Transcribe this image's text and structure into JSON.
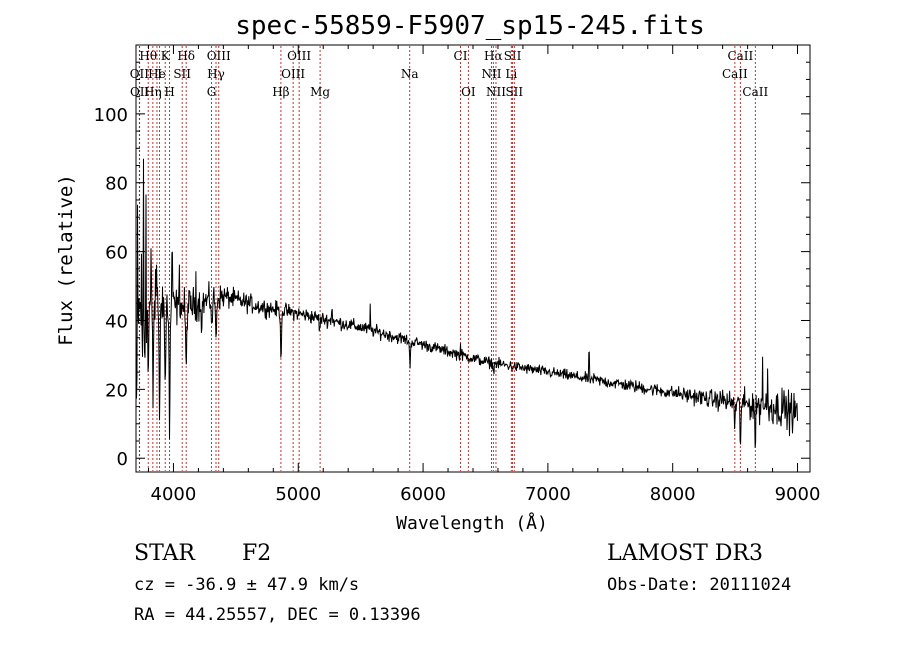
{
  "chart_data": {
    "type": "line",
    "title": "spec-55859-F5907_sp15-245.fits",
    "xlabel": "Wavelength (Å)",
    "ylabel": "Flux (relative)",
    "xlim": [
      3700,
      9100
    ],
    "ylim": [
      -4,
      120
    ],
    "xticks": [
      4000,
      5000,
      6000,
      7000,
      8000,
      9000
    ],
    "yticks": [
      0,
      20,
      40,
      60,
      80,
      100
    ],
    "grid": false,
    "continuum": {
      "x": [
        3700,
        3800,
        3900,
        4000,
        4100,
        4200,
        4300,
        4400,
        4500,
        4700,
        5000,
        5500,
        6000,
        6500,
        7000,
        7500,
        8000,
        8500,
        8800,
        9000
      ],
      "y": [
        42,
        44,
        45,
        44,
        44,
        45,
        46,
        47,
        46,
        44,
        42,
        38,
        33,
        28,
        25,
        22,
        19,
        16,
        15,
        13
      ]
    },
    "absorption_features": [
      {
        "wavelength": 3705,
        "depth": 38,
        "width": 4
      },
      {
        "wavelength": 3750,
        "depth": 18,
        "width": 4
      },
      {
        "wavelength": 3770,
        "depth": 14,
        "width": 4
      },
      {
        "wavelength": 3798,
        "depth": 20,
        "width": 5
      },
      {
        "wavelength": 3836,
        "depth": 26,
        "width": 5
      },
      {
        "wavelength": 3889,
        "depth": 30,
        "width": 6
      },
      {
        "wavelength": 3934,
        "depth": 25,
        "width": 6
      },
      {
        "wavelength": 3969,
        "depth": 38,
        "width": 6
      },
      {
        "wavelength": 4102,
        "depth": 20,
        "width": 6
      },
      {
        "wavelength": 4227,
        "depth": 8,
        "width": 4
      },
      {
        "wavelength": 4308,
        "depth": 9,
        "width": 5
      },
      {
        "wavelength": 4341,
        "depth": 14,
        "width": 5
      },
      {
        "wavelength": 4861,
        "depth": 13,
        "width": 6
      },
      {
        "wavelength": 5172,
        "depth": 4,
        "width": 5
      },
      {
        "wavelength": 5895,
        "depth": 8,
        "width": 5
      },
      {
        "wavelength": 6563,
        "depth": 3,
        "width": 5
      },
      {
        "wavelength": 8498,
        "depth": 7,
        "width": 5
      },
      {
        "wavelength": 8542,
        "depth": 12,
        "width": 5
      },
      {
        "wavelength": 8662,
        "depth": 12,
        "width": 5
      }
    ],
    "spikes": [
      {
        "wavelength": 3712,
        "height": 28
      },
      {
        "wavelength": 3745,
        "height": 22
      },
      {
        "wavelength": 3760,
        "height": 42
      },
      {
        "wavelength": 3780,
        "height": 38
      },
      {
        "wavelength": 3820,
        "height": 14
      },
      {
        "wavelength": 3863,
        "height": 18
      },
      {
        "wavelength": 3912,
        "height": 12
      },
      {
        "wavelength": 3990,
        "height": 16
      },
      {
        "wavelength": 4049,
        "height": 18
      },
      {
        "wavelength": 4180,
        "height": 8
      },
      {
        "wavelength": 5270,
        "height": 4
      },
      {
        "wavelength": 5577,
        "height": 8
      },
      {
        "wavelength": 6300,
        "height": 4
      },
      {
        "wavelength": 7330,
        "height": 6
      },
      {
        "wavelength": 8400,
        "height": 4
      },
      {
        "wavelength": 8719,
        "height": 18
      },
      {
        "wavelength": 8760,
        "height": 10
      },
      {
        "wavelength": 8875,
        "height": 8
      }
    ],
    "noise_profile": {
      "x": [
        3700,
        4000,
        4500,
        5000,
        6000,
        7000,
        8000,
        8400,
        8700,
        9000
      ],
      "amplitude": [
        10,
        4.5,
        2.2,
        1.6,
        1.3,
        1.2,
        1.5,
        2.2,
        3.8,
        4.5
      ]
    },
    "line_markers": [
      {
        "label": "Hθ",
        "wavelength": 3798,
        "row": 0
      },
      {
        "label": "K",
        "wavelength": 3934,
        "row": 0
      },
      {
        "label": "Hδ",
        "wavelength": 4102,
        "row": 0
      },
      {
        "label": "OIII",
        "wavelength": 4363,
        "row": 0
      },
      {
        "label": "OIII",
        "wavelength": 5007,
        "row": 0
      },
      {
        "label": "CI",
        "wavelength": 6300,
        "row": 0
      },
      {
        "label": "Hα",
        "wavelength": 6563,
        "row": 0
      },
      {
        "label": "SII",
        "wavelength": 6717,
        "row": 0
      },
      {
        "label": "CaII",
        "wavelength": 8542,
        "row": 0
      },
      {
        "label": "OII",
        "wavelength": 3727,
        "row": 1
      },
      {
        "label": "He",
        "wavelength": 3868,
        "row": 1
      },
      {
        "label": "I",
        "wavelength": 3889,
        "row": 1
      },
      {
        "label": "SII",
        "wavelength": 4070,
        "row": 1
      },
      {
        "label": "Hγ",
        "wavelength": 4341,
        "row": 1
      },
      {
        "label": "OIII",
        "wavelength": 4959,
        "row": 1
      },
      {
        "label": "Na",
        "wavelength": 5893,
        "row": 1
      },
      {
        "label": "NII",
        "wavelength": 6548,
        "row": 1
      },
      {
        "label": "Li",
        "wavelength": 6707,
        "row": 1
      },
      {
        "label": "CaII",
        "wavelength": 8498,
        "row": 1
      },
      {
        "label": "OII",
        "wavelength": 3729,
        "row": 2
      },
      {
        "label": "Hη",
        "wavelength": 3835,
        "row": 2
      },
      {
        "label": "H",
        "wavelength": 3969,
        "row": 2
      },
      {
        "label": "G",
        "wavelength": 4305,
        "row": 2
      },
      {
        "label": "Hβ",
        "wavelength": 4861,
        "row": 2
      },
      {
        "label": "Mg",
        "wavelength": 5175,
        "row": 2
      },
      {
        "label": "OI",
        "wavelength": 6363,
        "row": 2
      },
      {
        "label": "NII",
        "wavelength": 6584,
        "row": 2
      },
      {
        "label": "SII",
        "wavelength": 6731,
        "row": 2
      },
      {
        "label": "CaII",
        "wavelength": 8662,
        "row": 2
      }
    ],
    "marker_color": "#b22222",
    "line_color": "#000000"
  },
  "info": {
    "class_label": "STAR",
    "subclass": "F2",
    "survey": "LAMOST DR3",
    "cz_line": "cz = -36.9 ± 47.9 km/s",
    "obs_date": "Obs-Date: 20111024",
    "radec": "RA =  44.25557, DEC =   0.13396"
  }
}
